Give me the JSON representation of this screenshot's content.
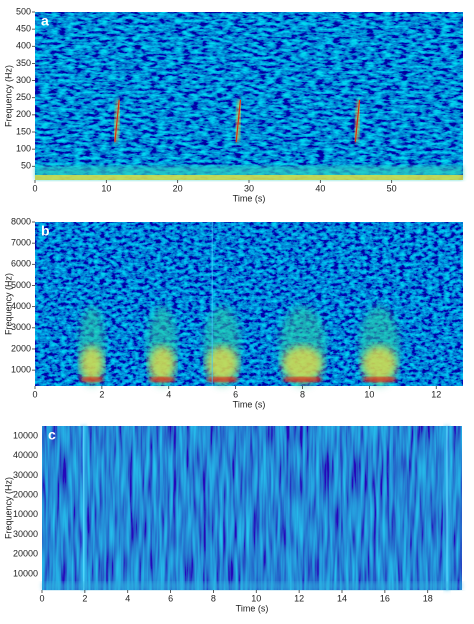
{
  "chart_data": [
    {
      "type": "spectrogram",
      "label": "a",
      "xlabel": "Time (s)",
      "ylabel": "Frequency (Hz)",
      "xlim": [
        0,
        60
      ],
      "xticks": [
        0,
        10,
        20,
        30,
        40,
        50
      ],
      "ylim": [
        10,
        500
      ],
      "yticks": [
        50,
        100,
        150,
        200,
        250,
        300,
        350,
        400,
        450,
        500
      ]
    },
    {
      "type": "spectrogram",
      "label": "b",
      "xlabel": "Time (s)",
      "ylabel": "Frequency (Hz)",
      "xlim": [
        0,
        12.8
      ],
      "xticks": [
        0,
        2,
        4,
        6,
        8,
        10,
        12
      ],
      "ylim": [
        250,
        8000
      ],
      "yticks": [
        1000,
        2000,
        3000,
        4000,
        5000,
        6000,
        7000,
        8000
      ]
    },
    {
      "type": "spectrogram",
      "label": "c",
      "xlabel": "Time (s)",
      "ylabel": "Frequency (Hz)",
      "xlim": [
        0,
        19.6
      ],
      "xticks": [
        0,
        2,
        4,
        6,
        8,
        10,
        12,
        14,
        16,
        18
      ],
      "ylabels": [
        "10000",
        "40000",
        "30000",
        "20000",
        "10000",
        "30000",
        "20000",
        "10000"
      ]
    }
  ]
}
